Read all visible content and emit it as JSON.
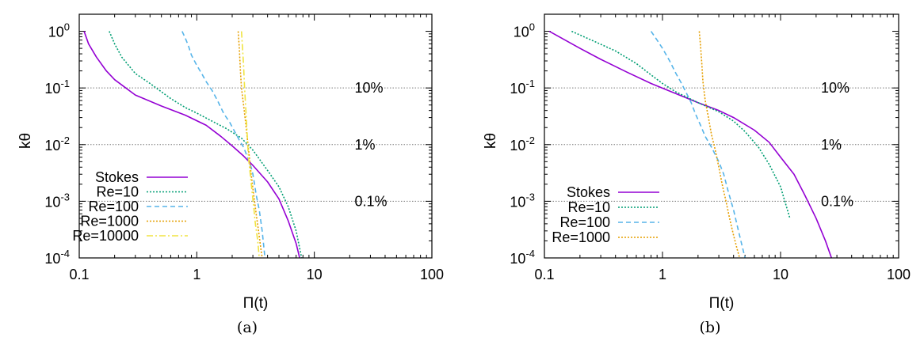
{
  "figure": {
    "captions": [
      "(a)",
      "(b)"
    ]
  },
  "chart_data": [
    {
      "type": "line",
      "caption": "(a)",
      "xlabel": "Π(t)",
      "ylabel": "kθ",
      "xscale": "log",
      "yscale": "log",
      "xlim": [
        0.1,
        100
      ],
      "ylim": [
        0.0001,
        2
      ],
      "xticks": [
        {
          "v": 0.1,
          "label": "0.1"
        },
        {
          "v": 1,
          "label": "1"
        },
        {
          "v": 10,
          "label": "10"
        },
        {
          "v": 100,
          "label": "100"
        }
      ],
      "yticks": [
        {
          "v": 1,
          "base": "10",
          "exp": "0"
        },
        {
          "v": 0.1,
          "base": "10",
          "exp": "-1"
        },
        {
          "v": 0.01,
          "base": "10",
          "exp": "-2"
        },
        {
          "v": 0.001,
          "base": "10",
          "exp": "-3"
        },
        {
          "v": 0.0001,
          "base": "10",
          "exp": "-4"
        }
      ],
      "reference_lines": [
        {
          "y": 0.1,
          "label": "10%",
          "label_x": 22
        },
        {
          "y": 0.01,
          "label": "1%",
          "label_x": 22
        },
        {
          "y": 0.001,
          "label": "0.1%",
          "label_x": 22
        }
      ],
      "legend": "bottom-left",
      "series": [
        {
          "name": "Stokes",
          "color": "#9400d3",
          "dash": "",
          "points": [
            [
              0.11,
              1
            ],
            [
              0.12,
              0.6
            ],
            [
              0.14,
              0.35
            ],
            [
              0.17,
              0.2
            ],
            [
              0.2,
              0.14
            ],
            [
              0.3,
              0.075
            ],
            [
              0.5,
              0.048
            ],
            [
              0.8,
              0.033
            ],
            [
              1.2,
              0.022
            ],
            [
              1.6,
              0.014
            ],
            [
              2.0,
              0.0095
            ],
            [
              2.5,
              0.0063
            ],
            [
              3.0,
              0.0043
            ],
            [
              4.0,
              0.0022
            ],
            [
              5.0,
              0.0011
            ],
            [
              6.0,
              0.00045
            ],
            [
              7.0,
              0.00018
            ],
            [
              7.5,
              0.0001
            ]
          ]
        },
        {
          "name": "Re=10",
          "color": "#009e73",
          "dash": "2 2",
          "points": [
            [
              0.18,
              1
            ],
            [
              0.2,
              0.6
            ],
            [
              0.23,
              0.35
            ],
            [
              0.3,
              0.18
            ],
            [
              0.4,
              0.12
            ],
            [
              0.6,
              0.065
            ],
            [
              0.8,
              0.045
            ],
            [
              1.0,
              0.036
            ],
            [
              1.3,
              0.027
            ],
            [
              1.8,
              0.019
            ],
            [
              2.4,
              0.013
            ],
            [
              3.0,
              0.008
            ],
            [
              4.0,
              0.0035
            ],
            [
              5.0,
              0.0018
            ],
            [
              6.0,
              0.0008
            ],
            [
              7.0,
              0.0003
            ],
            [
              7.8,
              0.0001
            ]
          ]
        },
        {
          "name": "Re=100",
          "color": "#56b4e9",
          "dash": "6 4",
          "points": [
            [
              0.75,
              1
            ],
            [
              0.8,
              0.75
            ],
            [
              0.85,
              0.55
            ],
            [
              0.9,
              0.38
            ],
            [
              1.0,
              0.25
            ],
            [
              1.1,
              0.18
            ],
            [
              1.2,
              0.13
            ],
            [
              1.35,
              0.09
            ],
            [
              1.5,
              0.06
            ],
            [
              1.7,
              0.035
            ],
            [
              1.9,
              0.025
            ],
            [
              2.1,
              0.017
            ],
            [
              2.3,
              0.012
            ],
            [
              2.5,
              0.009
            ],
            [
              2.7,
              0.006
            ],
            [
              2.9,
              0.004
            ],
            [
              3.0,
              0.003
            ],
            [
              3.1,
              0.002
            ],
            [
              3.2,
              0.0013
            ],
            [
              3.4,
              0.0007
            ],
            [
              3.6,
              0.0003
            ],
            [
              3.8,
              0.0001
            ]
          ]
        },
        {
          "name": "Re=1000",
          "color": "#e69f00",
          "dash": "2 2",
          "points": [
            [
              2.25,
              1
            ],
            [
              2.3,
              0.5
            ],
            [
              2.35,
              0.2
            ],
            [
              2.4,
              0.1
            ],
            [
              2.5,
              0.05
            ],
            [
              2.6,
              0.025
            ],
            [
              2.7,
              0.012
            ],
            [
              2.8,
              0.006
            ],
            [
              2.9,
              0.003
            ],
            [
              3.0,
              0.0017
            ],
            [
              3.1,
              0.001
            ],
            [
              3.2,
              0.0006
            ],
            [
              3.35,
              0.0003
            ],
            [
              3.5,
              0.00015
            ],
            [
              3.6,
              0.0001
            ]
          ]
        },
        {
          "name": "Re=10000",
          "color": "#f0e442",
          "dash": "8 3 2 3",
          "points": [
            [
              2.4,
              1
            ],
            [
              2.45,
              0.5
            ],
            [
              2.5,
              0.25
            ],
            [
              2.55,
              0.1
            ],
            [
              2.6,
              0.05
            ],
            [
              2.65,
              0.025
            ],
            [
              2.7,
              0.012
            ],
            [
              2.75,
              0.006
            ],
            [
              2.85,
              0.003
            ],
            [
              2.95,
              0.0015
            ],
            [
              3.05,
              0.0008
            ],
            [
              3.15,
              0.0004
            ],
            [
              3.3,
              0.0002
            ],
            [
              3.4,
              0.0001
            ]
          ]
        }
      ]
    },
    {
      "type": "line",
      "caption": "(b)",
      "xlabel": "Π(t)",
      "ylabel": "kθ",
      "xscale": "log",
      "yscale": "log",
      "xlim": [
        0.1,
        100
      ],
      "ylim": [
        0.0001,
        2
      ],
      "xticks": [
        {
          "v": 0.1,
          "label": "0.1"
        },
        {
          "v": 1,
          "label": "1"
        },
        {
          "v": 10,
          "label": "10"
        },
        {
          "v": 100,
          "label": "100"
        }
      ],
      "yticks": [
        {
          "v": 1,
          "base": "10",
          "exp": "0"
        },
        {
          "v": 0.1,
          "base": "10",
          "exp": "-1"
        },
        {
          "v": 0.01,
          "base": "10",
          "exp": "-2"
        },
        {
          "v": 0.001,
          "base": "10",
          "exp": "-3"
        },
        {
          "v": 0.0001,
          "base": "10",
          "exp": "-4"
        }
      ],
      "reference_lines": [
        {
          "y": 0.1,
          "label": "10%",
          "label_x": 22
        },
        {
          "y": 0.01,
          "label": "1%",
          "label_x": 22
        },
        {
          "y": 0.001,
          "label": "0.1%",
          "label_x": 22
        }
      ],
      "legend": "bottom-left",
      "series": [
        {
          "name": "Stokes",
          "color": "#9400d3",
          "dash": "",
          "points": [
            [
              0.11,
              1
            ],
            [
              0.2,
              0.5
            ],
            [
              0.3,
              0.32
            ],
            [
              0.5,
              0.19
            ],
            [
              0.8,
              0.12
            ],
            [
              1.2,
              0.085
            ],
            [
              2.0,
              0.055
            ],
            [
              3.0,
              0.04
            ],
            [
              4.0,
              0.03
            ],
            [
              6.0,
              0.018
            ],
            [
              8.0,
              0.011
            ],
            [
              10.0,
              0.006
            ],
            [
              13.0,
              0.003
            ],
            [
              16.0,
              0.0013
            ],
            [
              20.0,
              0.0005
            ],
            [
              24.0,
              0.0002
            ],
            [
              27.0,
              0.0001
            ]
          ]
        },
        {
          "name": "Re=10",
          "color": "#009e73",
          "dash": "2 2",
          "points": [
            [
              0.17,
              1
            ],
            [
              0.25,
              0.7
            ],
            [
              0.4,
              0.45
            ],
            [
              0.6,
              0.27
            ],
            [
              0.8,
              0.17
            ],
            [
              1.0,
              0.12
            ],
            [
              1.3,
              0.085
            ],
            [
              2.0,
              0.055
            ],
            [
              3.0,
              0.038
            ],
            [
              4.0,
              0.026
            ],
            [
              5.0,
              0.017
            ],
            [
              6.5,
              0.009
            ],
            [
              8.0,
              0.0045
            ],
            [
              10.0,
              0.0018
            ],
            [
              12.0,
              0.0005
            ]
          ]
        },
        {
          "name": "Re=100",
          "color": "#56b4e9",
          "dash": "6 4",
          "points": [
            [
              0.8,
              1
            ],
            [
              0.9,
              0.7
            ],
            [
              1.0,
              0.5
            ],
            [
              1.15,
              0.3
            ],
            [
              1.3,
              0.18
            ],
            [
              1.45,
              0.12
            ],
            [
              1.6,
              0.08
            ],
            [
              1.75,
              0.055
            ],
            [
              1.9,
              0.035
            ],
            [
              2.1,
              0.022
            ],
            [
              2.3,
              0.014
            ],
            [
              2.6,
              0.009
            ],
            [
              3.0,
              0.005
            ],
            [
              3.3,
              0.003
            ],
            [
              3.6,
              0.0015
            ],
            [
              4.0,
              0.0007
            ],
            [
              4.4,
              0.0003
            ],
            [
              5.0,
              0.0001
            ]
          ]
        },
        {
          "name": "Re=1000",
          "color": "#e69f00",
          "dash": "2 2",
          "points": [
            [
              2.05,
              1
            ],
            [
              2.1,
              0.55
            ],
            [
              2.15,
              0.28
            ],
            [
              2.2,
              0.13
            ],
            [
              2.3,
              0.06
            ],
            [
              2.45,
              0.03
            ],
            [
              2.6,
              0.015
            ],
            [
              2.8,
              0.008
            ],
            [
              3.0,
              0.004
            ],
            [
              3.2,
              0.002
            ],
            [
              3.45,
              0.001
            ],
            [
              3.7,
              0.0005
            ],
            [
              4.0,
              0.00025
            ],
            [
              4.3,
              0.00014
            ],
            [
              4.5,
              0.0001
            ]
          ]
        }
      ]
    }
  ]
}
